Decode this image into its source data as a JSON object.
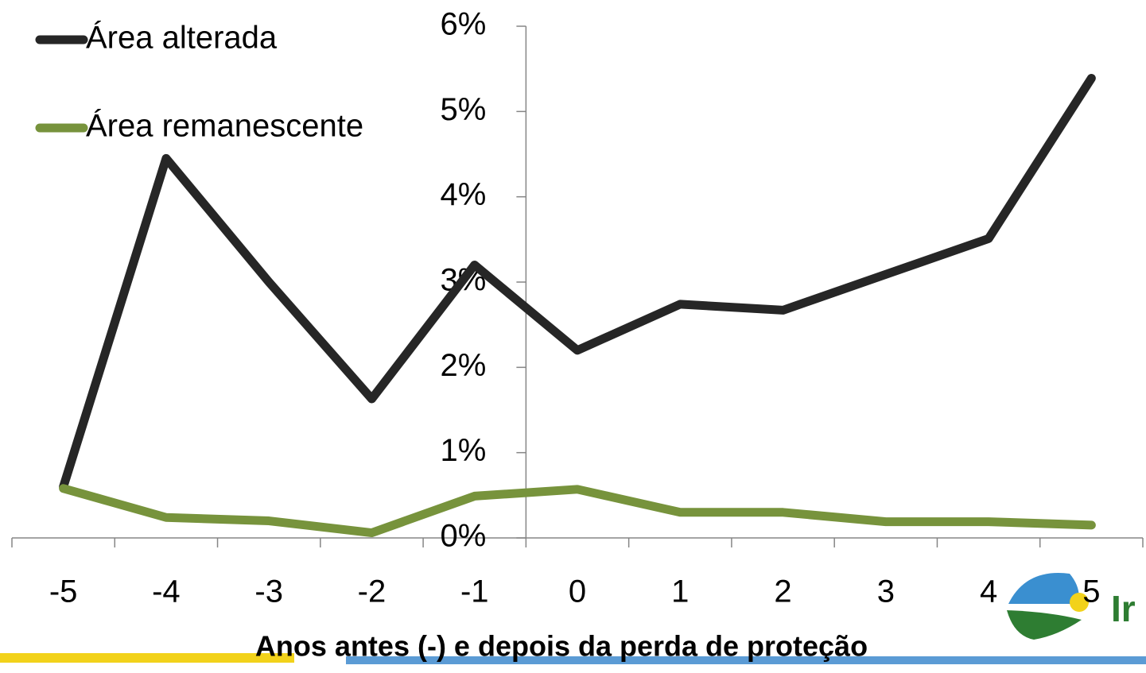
{
  "chart_data": {
    "type": "line",
    "x_label": "Anos antes (-) e depois da perda de proteção",
    "categories": [
      "-5",
      "-4",
      "-3",
      "-2",
      "-1",
      "0",
      "1",
      "2",
      "3",
      "4",
      "5"
    ],
    "series": [
      {
        "name": "Área alterada",
        "color": "#262626",
        "values": [
          0.6,
          4.45,
          3.0,
          1.63,
          3.2,
          2.2,
          2.74,
          2.67,
          3.09,
          3.51,
          5.39
        ]
      },
      {
        "name": "Área remanescente",
        "color": "#77933c",
        "values": [
          0.58,
          0.24,
          0.2,
          0.06,
          0.49,
          0.57,
          0.3,
          0.3,
          0.19,
          0.19,
          0.15
        ]
      }
    ],
    "ylim": [
      0,
      6
    ],
    "yticks": [
      {
        "value": 0,
        "label": "0%"
      },
      {
        "value": 1,
        "label": "1%"
      },
      {
        "value": 2,
        "label": "2%"
      },
      {
        "value": 3,
        "label": "3%"
      },
      {
        "value": 4,
        "label": "4%"
      },
      {
        "value": 5,
        "label": "5%"
      },
      {
        "value": 6,
        "label": "6%"
      }
    ],
    "legend": "top-left",
    "logo_text": "Ir"
  }
}
